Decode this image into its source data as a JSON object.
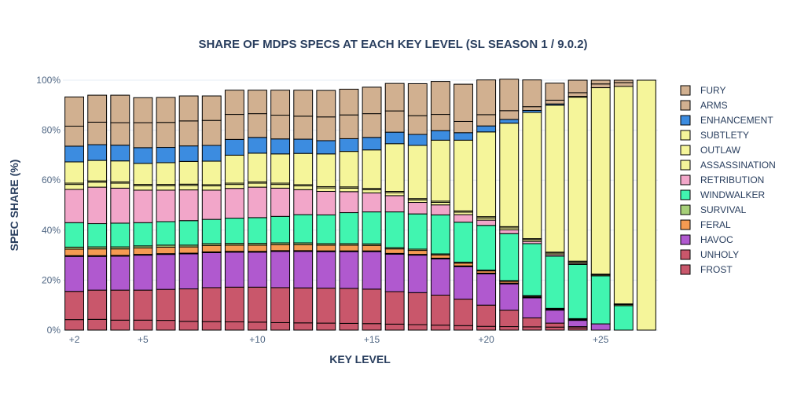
{
  "chart_data": {
    "type": "bar",
    "stacked": true,
    "title": "SHARE OF MDPS SPECS AT EACH KEY LEVEL (SL SEASON 1 / 9.0.2)",
    "xlabel": "KEY LEVEL",
    "ylabel": "SPEC SHARE (%)",
    "ylim": [
      0,
      100
    ],
    "yticks": [
      "0%",
      "20%",
      "40%",
      "60%",
      "80%",
      "100%"
    ],
    "xticks": [
      {
        "x": 2,
        "label": "+2"
      },
      {
        "x": 5,
        "label": "+5"
      },
      {
        "x": 10,
        "label": "+10"
      },
      {
        "x": 15,
        "label": "+15"
      },
      {
        "x": 20,
        "label": "+20"
      },
      {
        "x": 25,
        "label": "+25"
      }
    ],
    "legend_position": "right",
    "x": [
      2,
      3,
      4,
      5,
      6,
      7,
      8,
      9,
      10,
      11,
      12,
      13,
      14,
      15,
      16,
      17,
      18,
      19,
      20,
      21,
      22,
      23,
      24,
      25,
      26,
      27
    ],
    "series": [
      {
        "name": "FROST",
        "color": "#c9576b",
        "values": [
          4.2,
          4.3,
          4.0,
          4.0,
          3.9,
          3.5,
          3.4,
          3.3,
          3.2,
          3.0,
          2.9,
          2.8,
          2.7,
          2.6,
          2.4,
          2.2,
          2.0,
          1.8,
          1.5,
          1.4,
          1.3,
          1.2,
          0.9,
          0.0,
          0.0,
          0.0
        ]
      },
      {
        "name": "UNHOLY",
        "color": "#c9576b",
        "values": [
          11.3,
          11.7,
          12.0,
          12.0,
          12.4,
          13.0,
          13.6,
          13.9,
          14.0,
          14.0,
          14.0,
          14.0,
          14.0,
          13.8,
          13.0,
          12.8,
          12.0,
          10.6,
          8.5,
          6.6,
          3.6,
          1.6,
          0.5,
          0.0,
          0.0,
          0.0
        ]
      },
      {
        "name": "HAVOC",
        "color": "#b059cf",
        "values": [
          14.0,
          13.5,
          13.6,
          14.0,
          14.0,
          14.0,
          14.0,
          14.0,
          14.0,
          14.5,
          14.6,
          14.6,
          14.7,
          15.0,
          15.0,
          15.0,
          14.5,
          13.0,
          12.5,
          10.5,
          8.0,
          5.2,
          2.5,
          2.5,
          0.0,
          0.0
        ]
      },
      {
        "name": "HAVOC",
        "color": "#b059cf",
        "values": [
          0.3,
          0.3,
          0.3,
          0.3,
          0.3,
          0.3,
          0.3,
          0.3,
          0.3,
          0.3,
          0.3,
          0.3,
          0.3,
          0.3,
          0.3,
          0.3,
          0.3,
          0.3,
          0.3,
          0.3,
          0.3,
          0.3,
          0.3,
          0.0,
          0.0,
          0.0
        ]
      },
      {
        "name": "FERAL",
        "color": "#f59b52",
        "values": [
          2.6,
          2.7,
          2.6,
          2.6,
          2.6,
          2.5,
          2.6,
          2.5,
          2.5,
          2.4,
          2.4,
          2.3,
          2.3,
          2.2,
          1.8,
          1.6,
          1.3,
          1.1,
          0.9,
          0.7,
          0.4,
          0.3,
          0.3,
          0.0,
          0.0,
          0.0
        ]
      },
      {
        "name": "SURVIVAL",
        "color": "#a6cf78",
        "values": [
          0.8,
          0.8,
          0.8,
          0.8,
          0.8,
          0.7,
          0.7,
          0.7,
          0.7,
          0.7,
          0.7,
          0.6,
          0.6,
          0.6,
          0.5,
          0.5,
          0.4,
          0.4,
          0.3,
          0.3,
          0.2,
          0.1,
          0.1,
          0.0,
          0.0,
          0.0
        ]
      },
      {
        "name": "WINDWALKER",
        "color": "#41f5b0",
        "values": [
          9.8,
          9.3,
          9.5,
          9.3,
          9.4,
          9.8,
          9.7,
          10.1,
          10.3,
          10.6,
          11.3,
          11.5,
          12.4,
          12.8,
          14.3,
          14.1,
          15.6,
          16.0,
          17.9,
          18.8,
          20.8,
          20.9,
          21.7,
          19.2,
          9.8,
          0.0
        ]
      },
      {
        "name": "RETRIBUTION",
        "color": "#f2a6c9",
        "values": [
          13.3,
          14.6,
          14.0,
          13.0,
          12.6,
          12.3,
          11.7,
          11.9,
          12.2,
          11.3,
          10.0,
          9.4,
          8.4,
          7.6,
          6.5,
          4.6,
          4.0,
          3.0,
          2.1,
          1.5,
          0.9,
          0.6,
          0.4,
          0.0,
          0.0,
          0.0
        ]
      },
      {
        "name": "ASSASSINATION",
        "color": "#f5f59a",
        "values": [
          2.0,
          2.0,
          2.0,
          1.8,
          1.8,
          1.8,
          1.7,
          1.6,
          1.6,
          1.5,
          1.5,
          1.4,
          1.4,
          1.3,
          1.2,
          1.0,
          1.0,
          1.0,
          0.9,
          0.8,
          0.7,
          0.6,
          0.5,
          0.4,
          0.4,
          0.0
        ]
      },
      {
        "name": "OUTLAW",
        "color": "#f5f59a",
        "values": [
          0.5,
          0.5,
          0.5,
          0.5,
          0.5,
          0.5,
          0.5,
          0.5,
          0.5,
          0.5,
          0.5,
          0.5,
          0.5,
          0.5,
          0.5,
          0.5,
          0.5,
          0.5,
          0.5,
          0.5,
          0.4,
          0.4,
          0.4,
          0.3,
          0.3,
          0.0
        ]
      },
      {
        "name": "SUBTLETY",
        "color": "#f5f59a",
        "values": [
          8.5,
          8.2,
          8.4,
          8.4,
          8.7,
          9.1,
          9.4,
          11.2,
          11.5,
          11.7,
          12.5,
          13.1,
          14.2,
          15.4,
          19.1,
          21.3,
          24.4,
          28.3,
          33.9,
          41.4,
          50.5,
          58.8,
          65.6,
          74.6,
          87.0,
          100.0
        ]
      },
      {
        "name": "ENHANCEMENT",
        "color": "#3c8ce0",
        "values": [
          6.3,
          6.3,
          6.3,
          6.3,
          6.1,
          6.2,
          6.3,
          6.3,
          6.3,
          6.0,
          5.7,
          5.3,
          5.1,
          5.0,
          4.6,
          4.4,
          3.8,
          3.0,
          2.4,
          1.5,
          0.8,
          0.5,
          0.3,
          0.0,
          0.0,
          0.0
        ]
      },
      {
        "name": "ARMS",
        "color": "#d1b090",
        "values": [
          8.0,
          9.0,
          9.0,
          10.0,
          10.0,
          10.0,
          10.0,
          10.0,
          9.5,
          9.5,
          9.2,
          9.5,
          9.5,
          9.5,
          8.5,
          7.5,
          6.5,
          4.5,
          4.5,
          3.5,
          1.5,
          1.5,
          1.5,
          1.5,
          1.5,
          0.0
        ]
      },
      {
        "name": "FURY",
        "color": "#d1b090",
        "values": [
          11.7,
          10.8,
          11.0,
          10.0,
          10.0,
          10.0,
          9.8,
          9.7,
          9.4,
          10.0,
          10.4,
          10.6,
          10.3,
          10.6,
          11.0,
          12.8,
          13.2,
          14.9,
          13.9,
          12.6,
          10.7,
          6.8,
          5.0,
          1.5,
          1.0,
          0.0
        ]
      }
    ],
    "legend": [
      {
        "label": "FURY",
        "color": "#d1b090"
      },
      {
        "label": "ARMS",
        "color": "#d1b090"
      },
      {
        "label": "ENHANCEMENT",
        "color": "#3c8ce0"
      },
      {
        "label": "SUBTLETY",
        "color": "#f5f59a"
      },
      {
        "label": "OUTLAW",
        "color": "#f5f59a"
      },
      {
        "label": "ASSASSINATION",
        "color": "#f5f59a"
      },
      {
        "label": "RETRIBUTION",
        "color": "#f2a6c9"
      },
      {
        "label": "WINDWALKER",
        "color": "#41f5b0"
      },
      {
        "label": "SURVIVAL",
        "color": "#a6cf78"
      },
      {
        "label": "FERAL",
        "color": "#f59b52"
      },
      {
        "label": "HAVOC",
        "color": "#b059cf"
      },
      {
        "label": "UNHOLY",
        "color": "#c9576b"
      },
      {
        "label": "FROST",
        "color": "#c9576b"
      }
    ]
  }
}
